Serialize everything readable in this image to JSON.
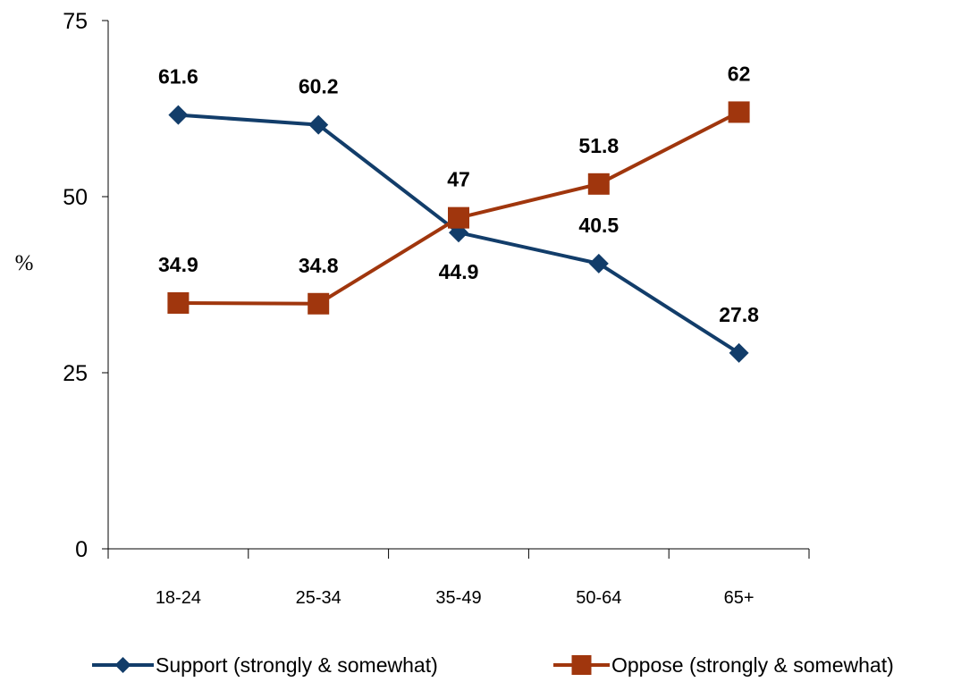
{
  "chart_data": {
    "type": "line",
    "categories": [
      "18-24",
      "25-34",
      "35-49",
      "50-64",
      "65+"
    ],
    "ylabel": "%",
    "xlabel": "",
    "ylim": [
      0,
      75
    ],
    "yticks": [
      0,
      25,
      50,
      75
    ],
    "grid": false,
    "legend_position": "bottom",
    "series": [
      {
        "name": "Support (strongly & somewhat)",
        "values": [
          61.6,
          60.2,
          44.9,
          40.5,
          27.8
        ],
        "labels": [
          "61.6",
          "60.2",
          "44.9",
          "40.5",
          "27.8"
        ],
        "color": "#123D6A",
        "marker": "diamond"
      },
      {
        "name": "Oppose (strongly & somewhat)",
        "values": [
          34.9,
          34.8,
          47,
          51.8,
          62
        ],
        "labels": [
          "34.9",
          "34.8",
          "47",
          "51.8",
          "62"
        ],
        "color": "#A0360D",
        "marker": "square"
      }
    ]
  }
}
